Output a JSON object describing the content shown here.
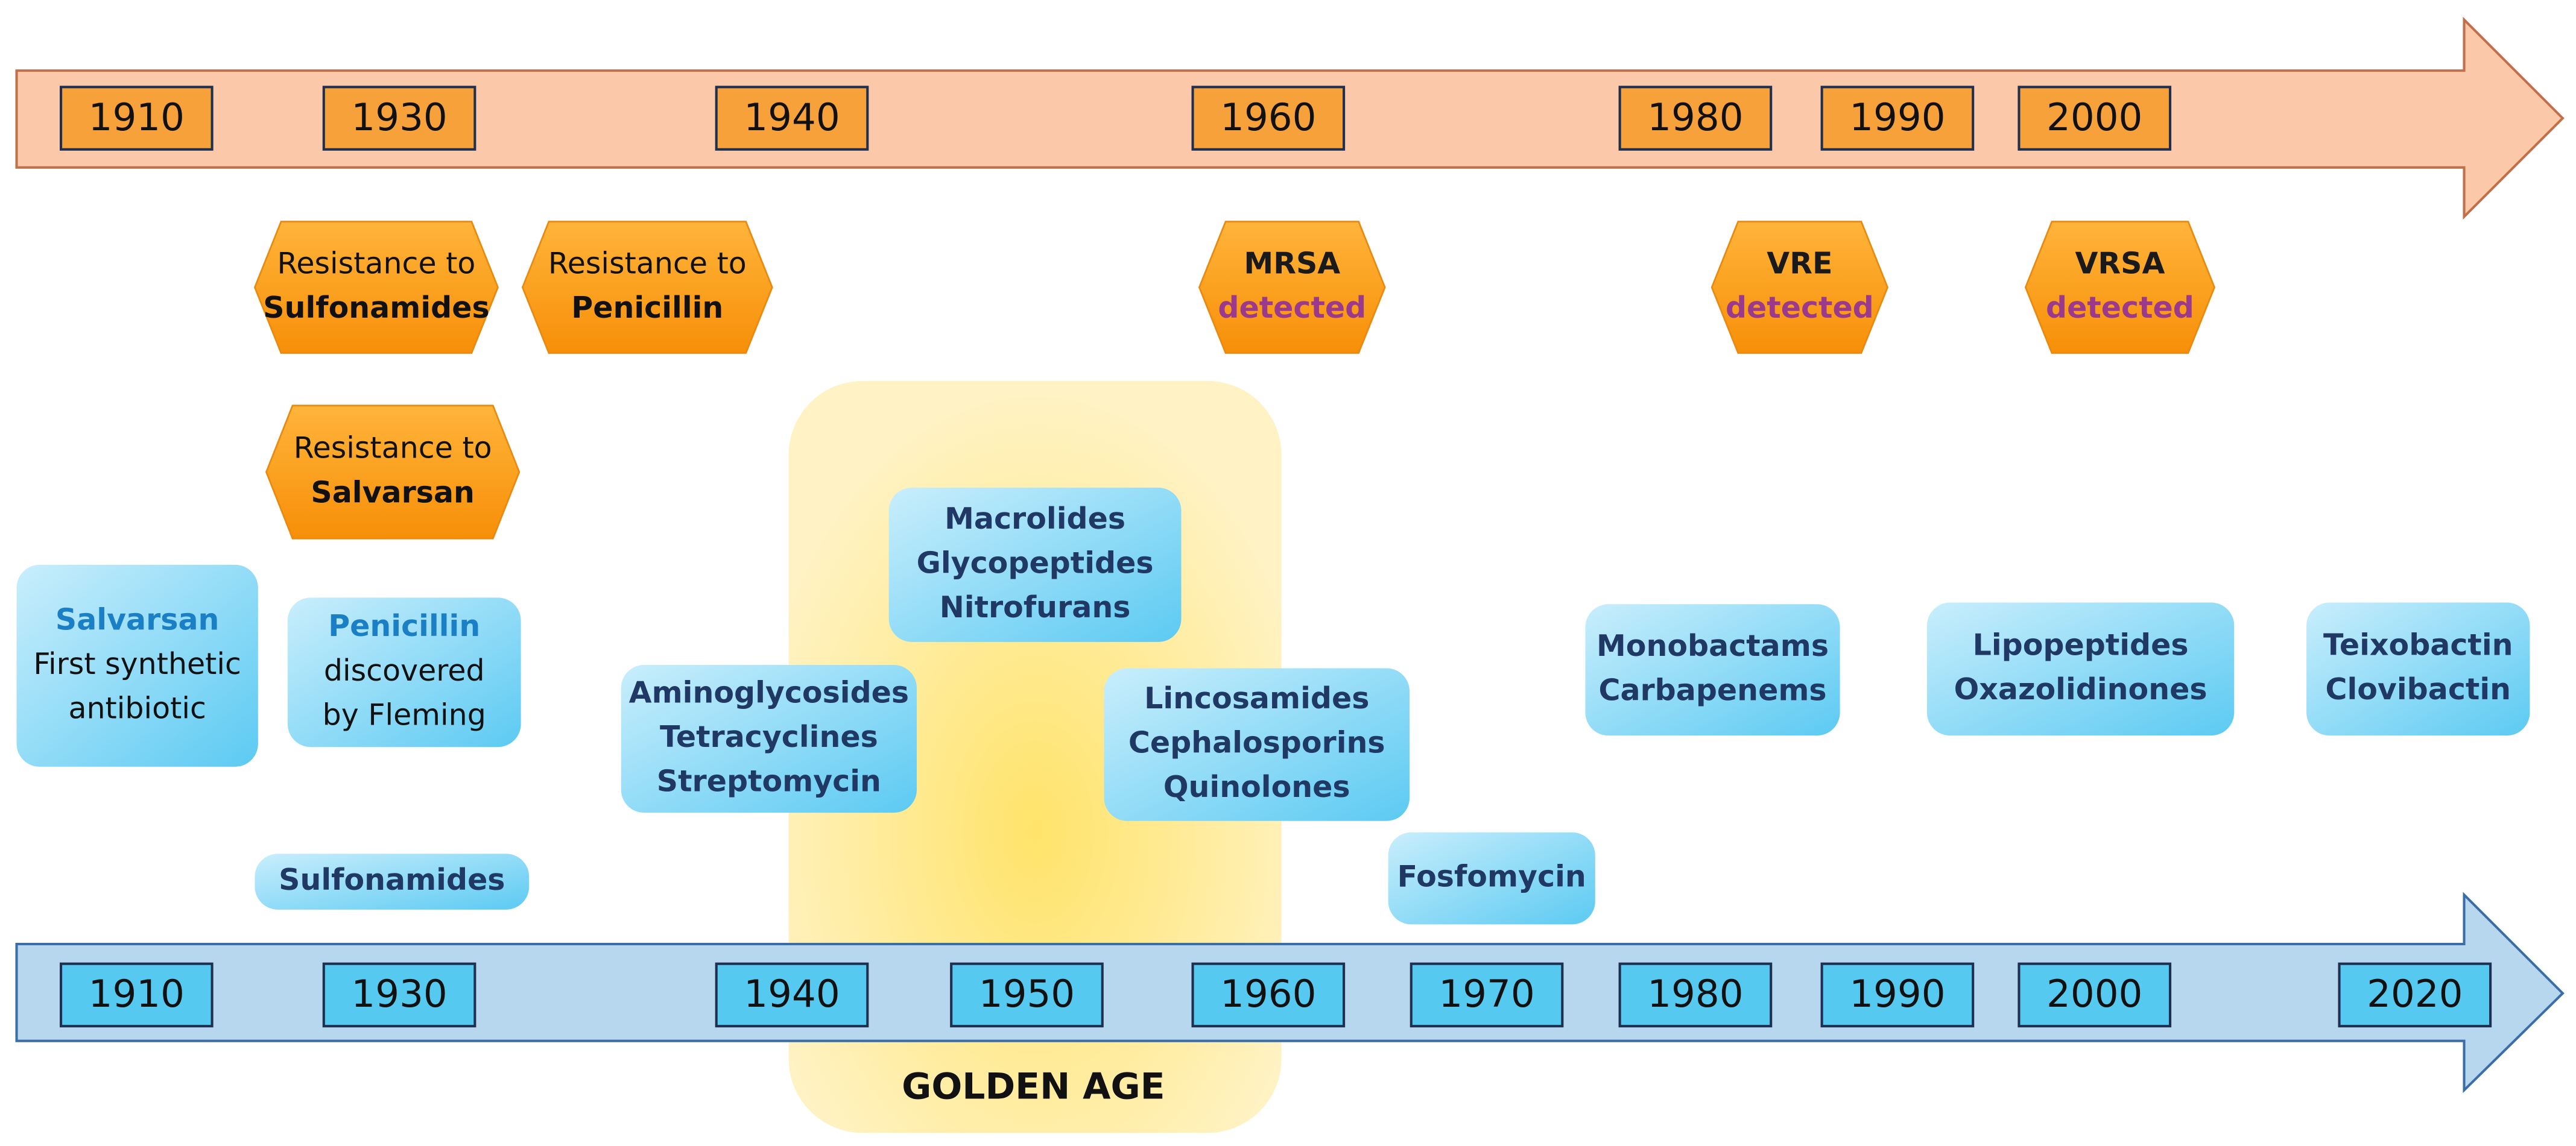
{
  "resistance_timeline": {
    "years": [
      "1910",
      "1930",
      "1940",
      "1960",
      "1980",
      "1990",
      "2000"
    ]
  },
  "resistance_events": [
    {
      "lines": [
        "Resistance to",
        "Sulfonamides"
      ]
    },
    {
      "lines": [
        "Resistance to",
        "Penicillin"
      ]
    },
    {
      "lines": [
        "Resistance to",
        "Salvarsan"
      ]
    },
    {
      "lines": [
        "MRSA",
        "detected"
      ]
    },
    {
      "lines": [
        "VRE",
        "detected"
      ]
    },
    {
      "lines": [
        "VRSA",
        "detected"
      ]
    }
  ],
  "discoveries": [
    {
      "lines": [
        "Salvarsan",
        "First synthetic",
        "antibiotic"
      ]
    },
    {
      "lines": [
        "Penicillin",
        "discovered",
        "by Fleming"
      ]
    },
    {
      "lines": [
        "Sulfonamides"
      ]
    },
    {
      "lines": [
        "Aminoglycosides",
        "Tetracyclines",
        "Streptomycin"
      ]
    },
    {
      "lines": [
        "Macrolides",
        "Glycopeptides",
        "Nitrofurans"
      ]
    },
    {
      "lines": [
        "Lincosamides",
        "Cephalosporins",
        "Quinolones"
      ]
    },
    {
      "lines": [
        "Fosfomycin"
      ]
    },
    {
      "lines": [
        "Monobactams",
        "Carbapenems"
      ]
    },
    {
      "lines": [
        "Lipopeptides",
        "Oxazolidinones"
      ]
    },
    {
      "lines": [
        "Teixobactin",
        "Clovibactin"
      ]
    }
  ],
  "discovery_timeline": {
    "years": [
      "1910",
      "1930",
      "1940",
      "1950",
      "1960",
      "1970",
      "1980",
      "1990",
      "2000",
      "2020"
    ]
  },
  "golden_age": {
    "label": "GOLDEN AGE"
  }
}
